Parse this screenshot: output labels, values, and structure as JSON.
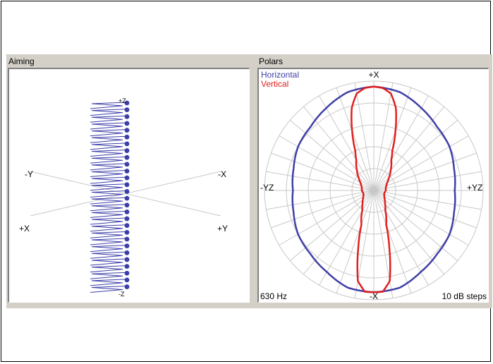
{
  "aiming": {
    "title": "Aiming",
    "axis_labels": {
      "upper_left": "-Y",
      "upper_right": "-X",
      "lower_left": "+X",
      "lower_right": "+Y",
      "top": "+Z",
      "bottom": "-Z"
    },
    "element_count": 28,
    "color": "#3b3ea8"
  },
  "polars": {
    "title": "Polars",
    "legend": [
      {
        "label": "Horizontal",
        "color": "#3f3fa6"
      },
      {
        "label": "Vertical",
        "color": "#e02020"
      }
    ],
    "axis_labels": {
      "top": "+X",
      "bottom": "-X",
      "left": "-YZ",
      "right": "+YZ"
    },
    "frequency": "630 Hz",
    "step": "10 dB steps",
    "chart_data": {
      "type": "polar",
      "rings": 5,
      "ring_step_db": 10,
      "angle_step_deg": 10,
      "series": [
        {
          "name": "Horizontal",
          "angles_deg": [
            0,
            15,
            30,
            45,
            60,
            75,
            90,
            105,
            120,
            135,
            150,
            165,
            180
          ],
          "radius_fraction": [
            0.95,
            0.93,
            0.87,
            0.82,
            0.8,
            0.76,
            0.74,
            0.76,
            0.8,
            0.82,
            0.86,
            0.92,
            0.93
          ]
        },
        {
          "name": "Vertical",
          "angles_deg": [
            0,
            5,
            10,
            15,
            20,
            25,
            30,
            40,
            50,
            60,
            70,
            80,
            90,
            100,
            110,
            120,
            130,
            140,
            150,
            160,
            165,
            170,
            175,
            180
          ],
          "radius_fraction": [
            0.95,
            0.94,
            0.9,
            0.78,
            0.58,
            0.4,
            0.32,
            0.24,
            0.18,
            0.14,
            0.12,
            0.11,
            0.11,
            0.1,
            0.1,
            0.11,
            0.13,
            0.16,
            0.21,
            0.33,
            0.55,
            0.84,
            0.93,
            0.93
          ]
        }
      ]
    }
  }
}
